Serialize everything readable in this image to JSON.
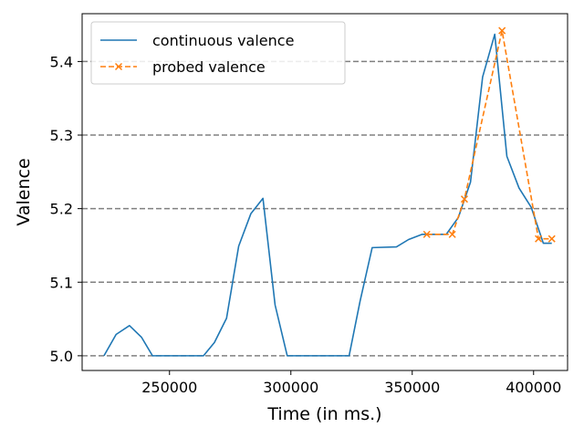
{
  "chart_data": {
    "type": "line",
    "title": "",
    "xlabel": "Time (in ms.)",
    "ylabel": "Valence",
    "xlim": [
      214000,
      414000
    ],
    "ylim": [
      4.98,
      5.465
    ],
    "x_ticks": [
      250000,
      300000,
      350000,
      400000
    ],
    "x_tick_labels": [
      "250000",
      "300000",
      "350000",
      "400000"
    ],
    "y_ticks": [
      5.0,
      5.1,
      5.2,
      5.3,
      5.4
    ],
    "y_tick_labels": [
      "5.0",
      "5.1",
      "5.2",
      "5.3",
      "5.4"
    ],
    "grid": "horizontal dashed gray",
    "legend_position": "top-left",
    "series": [
      {
        "name": "continuous valence",
        "color": "#1f77b4",
        "style": "solid",
        "marker": "none",
        "points": [
          [
            223000,
            5.0
          ],
          [
            228000,
            5.029
          ],
          [
            233500,
            5.041
          ],
          [
            238500,
            5.025
          ],
          [
            243000,
            5.0
          ],
          [
            253000,
            5.0
          ],
          [
            264000,
            5.0
          ],
          [
            268500,
            5.018
          ],
          [
            273500,
            5.051
          ],
          [
            278500,
            5.149
          ],
          [
            283500,
            5.193
          ],
          [
            288500,
            5.214
          ],
          [
            293500,
            5.069
          ],
          [
            298500,
            5.0
          ],
          [
            309000,
            5.0
          ],
          [
            324000,
            5.0
          ],
          [
            328500,
            5.074
          ],
          [
            333500,
            5.147
          ],
          [
            343500,
            5.148
          ],
          [
            348500,
            5.158
          ],
          [
            354000,
            5.165
          ],
          [
            364000,
            5.165
          ],
          [
            369000,
            5.188
          ],
          [
            374000,
            5.236
          ],
          [
            379000,
            5.379
          ],
          [
            384000,
            5.437
          ],
          [
            389000,
            5.271
          ],
          [
            394000,
            5.228
          ],
          [
            399000,
            5.202
          ],
          [
            404000,
            5.153
          ],
          [
            407500,
            5.153
          ]
        ]
      },
      {
        "name": "probed valence",
        "color": "#ff7f0e",
        "style": "dashed",
        "marker": "x",
        "points": [
          [
            356000,
            5.165
          ],
          [
            366500,
            5.165
          ],
          [
            371500,
            5.213
          ],
          [
            387000,
            5.442
          ],
          [
            402000,
            5.159
          ],
          [
            407500,
            5.159
          ]
        ]
      }
    ]
  }
}
